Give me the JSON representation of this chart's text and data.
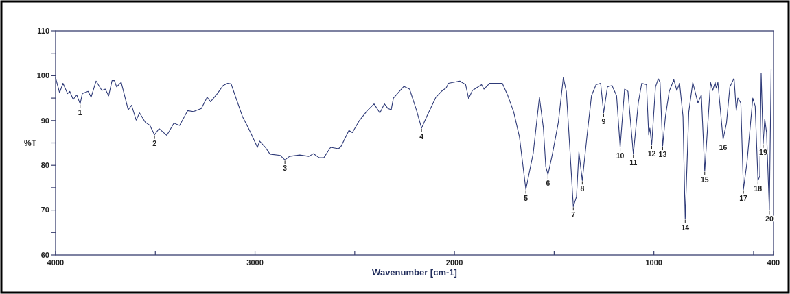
{
  "chart_data": {
    "type": "line",
    "xlabel": "Wavenumber [cm-1]",
    "ylabel": "%T",
    "xlim": [
      4000,
      400
    ],
    "ylim": [
      60,
      110
    ],
    "xticks": [
      4000,
      {
        "value": 3500,
        "label": null
      },
      3000,
      {
        "value": 2500,
        "label": null
      },
      2000,
      {
        "value": 1500,
        "label": null
      },
      1000,
      {
        "value": 500,
        "label": null
      },
      400
    ],
    "yticks": [
      60,
      {
        "value": 65,
        "label": null
      },
      70,
      {
        "value": 75,
        "label": null
      },
      80,
      {
        "value": 85,
        "label": null
      },
      90,
      {
        "value": 95,
        "label": null
      },
      100,
      {
        "value": 105,
        "label": null
      },
      110
    ],
    "marker": "none",
    "line_style": "solid",
    "series": [
      {
        "color": "#2e3a78",
        "x": [
          4000,
          3980,
          3963,
          3940,
          3929,
          3912,
          3894,
          3877,
          3866,
          3837,
          3822,
          3797,
          3768,
          3751,
          3734,
          3717,
          3705,
          3694,
          3671,
          3636,
          3619,
          3596,
          3579,
          3550,
          3527,
          3504,
          3481,
          3443,
          3430,
          3407,
          3378,
          3338,
          3309,
          3269,
          3240,
          3223,
          3189,
          3160,
          3137,
          3120,
          3097,
          3063,
          3040,
          3022,
          2988,
          2977,
          2948,
          2925,
          2873,
          2850,
          2827,
          2776,
          2730,
          2707,
          2678,
          2655,
          2621,
          2581,
          2569,
          2529,
          2512,
          2478,
          2437,
          2403,
          2374,
          2351,
          2334,
          2317,
          2306,
          2254,
          2225,
          2191,
          2165,
          2139,
          2093,
          2065,
          2041,
          2030,
          1973,
          1944,
          1929,
          1910,
          1864,
          1852,
          1824,
          1789,
          1760,
          1732,
          1703,
          1674,
          1642,
          1605,
          1574,
          1554,
          1542,
          1531,
          1508,
          1479,
          1454,
          1439,
          1420,
          1404,
          1388,
          1376,
          1359,
          1336,
          1313,
          1290,
          1267,
          1252,
          1233,
          1210,
          1187,
          1169,
          1147,
          1130,
          1103,
          1078,
          1061,
          1037,
          1026,
          1020,
          1011,
          992,
          978,
          969,
          956,
          942,
          923,
          900,
          885,
          871,
          854,
          843,
          825,
          805,
          779,
          762,
          745,
          716,
          705,
          693,
          687,
          679,
          653,
          636,
          619,
          598,
          587,
          579,
          564,
          551,
          533,
          504,
          492,
          478,
          469,
          462,
          452,
          444,
          435,
          421,
          412
        ],
        "values": [
          99.5,
          96.2,
          98.3,
          96.0,
          96.5,
          94.7,
          95.7,
          93.7,
          96.0,
          96.5,
          95.2,
          98.8,
          96.7,
          97.0,
          95.5,
          98.9,
          98.9,
          97.5,
          98.5,
          92.4,
          93.4,
          90.1,
          91.7,
          89.6,
          88.9,
          86.8,
          88.2,
          86.7,
          87.6,
          89.4,
          88.9,
          92.2,
          92.0,
          92.7,
          95.2,
          94.2,
          96.0,
          97.8,
          98.3,
          98.2,
          95.2,
          90.9,
          88.9,
          87.3,
          84.0,
          85.4,
          84.0,
          82.5,
          82.2,
          81.2,
          82.0,
          82.3,
          82.0,
          82.6,
          81.7,
          81.7,
          84.0,
          83.7,
          84.2,
          87.8,
          87.3,
          89.9,
          92.2,
          93.7,
          91.7,
          93.7,
          92.7,
          92.4,
          95.0,
          97.6,
          97.0,
          92.4,
          88.3,
          90.9,
          95.2,
          96.5,
          97.3,
          98.3,
          98.8,
          98.0,
          94.9,
          96.7,
          98.0,
          97.0,
          98.3,
          98.3,
          98.3,
          95.5,
          91.9,
          86.3,
          74.6,
          82.7,
          95.2,
          88.3,
          79.7,
          77.9,
          82.7,
          89.6,
          99.6,
          96.5,
          82.7,
          70.8,
          73.0,
          83.0,
          76.6,
          86.3,
          95.5,
          98.0,
          98.3,
          91.7,
          97.5,
          97.8,
          95.5,
          84.0,
          97.0,
          96.5,
          82.5,
          94.0,
          98.3,
          98.0,
          86.8,
          88.3,
          84.5,
          97.5,
          99.3,
          98.5,
          84.3,
          90.9,
          96.5,
          99.1,
          96.7,
          98.3,
          90.9,
          68.0,
          91.9,
          98.5,
          93.9,
          95.7,
          78.7,
          98.5,
          96.7,
          98.5,
          97.2,
          98.5,
          85.8,
          89.4,
          97.5,
          99.4,
          92.2,
          95.0,
          93.9,
          74.6,
          80.7,
          95.0,
          93.2,
          76.6,
          77.6,
          100.6,
          84.8,
          90.4,
          87.3,
          70.0,
          101.6
        ]
      }
    ],
    "annotations": [
      {
        "text": "1",
        "x": 3877,
        "y": 93.7
      },
      {
        "text": "2",
        "x": 3504,
        "y": 86.8
      },
      {
        "text": "3",
        "x": 2850,
        "y": 81.2
      },
      {
        "text": "4",
        "x": 2165,
        "y": 88.3
      },
      {
        "text": "5",
        "x": 1642,
        "y": 74.6
      },
      {
        "text": "6",
        "x": 1531,
        "y": 77.9
      },
      {
        "text": "7",
        "x": 1404,
        "y": 70.8
      },
      {
        "text": "8",
        "x": 1359,
        "y": 76.6
      },
      {
        "text": "9",
        "x": 1252,
        "y": 91.7
      },
      {
        "text": "10",
        "x": 1169,
        "y": 84.0
      },
      {
        "text": "11",
        "x": 1103,
        "y": 82.5
      },
      {
        "text": "12",
        "x": 1011,
        "y": 84.5
      },
      {
        "text": "13",
        "x": 956,
        "y": 84.3
      },
      {
        "text": "14",
        "x": 843,
        "y": 68.0
      },
      {
        "text": "15",
        "x": 745,
        "y": 78.7
      },
      {
        "text": "16",
        "x": 653,
        "y": 85.8
      },
      {
        "text": "17",
        "x": 551,
        "y": 74.6
      },
      {
        "text": "18",
        "x": 478,
        "y": 76.6
      },
      {
        "text": "19",
        "x": 452,
        "y": 84.8
      },
      {
        "text": "20",
        "x": 421,
        "y": 70.0
      }
    ]
  }
}
